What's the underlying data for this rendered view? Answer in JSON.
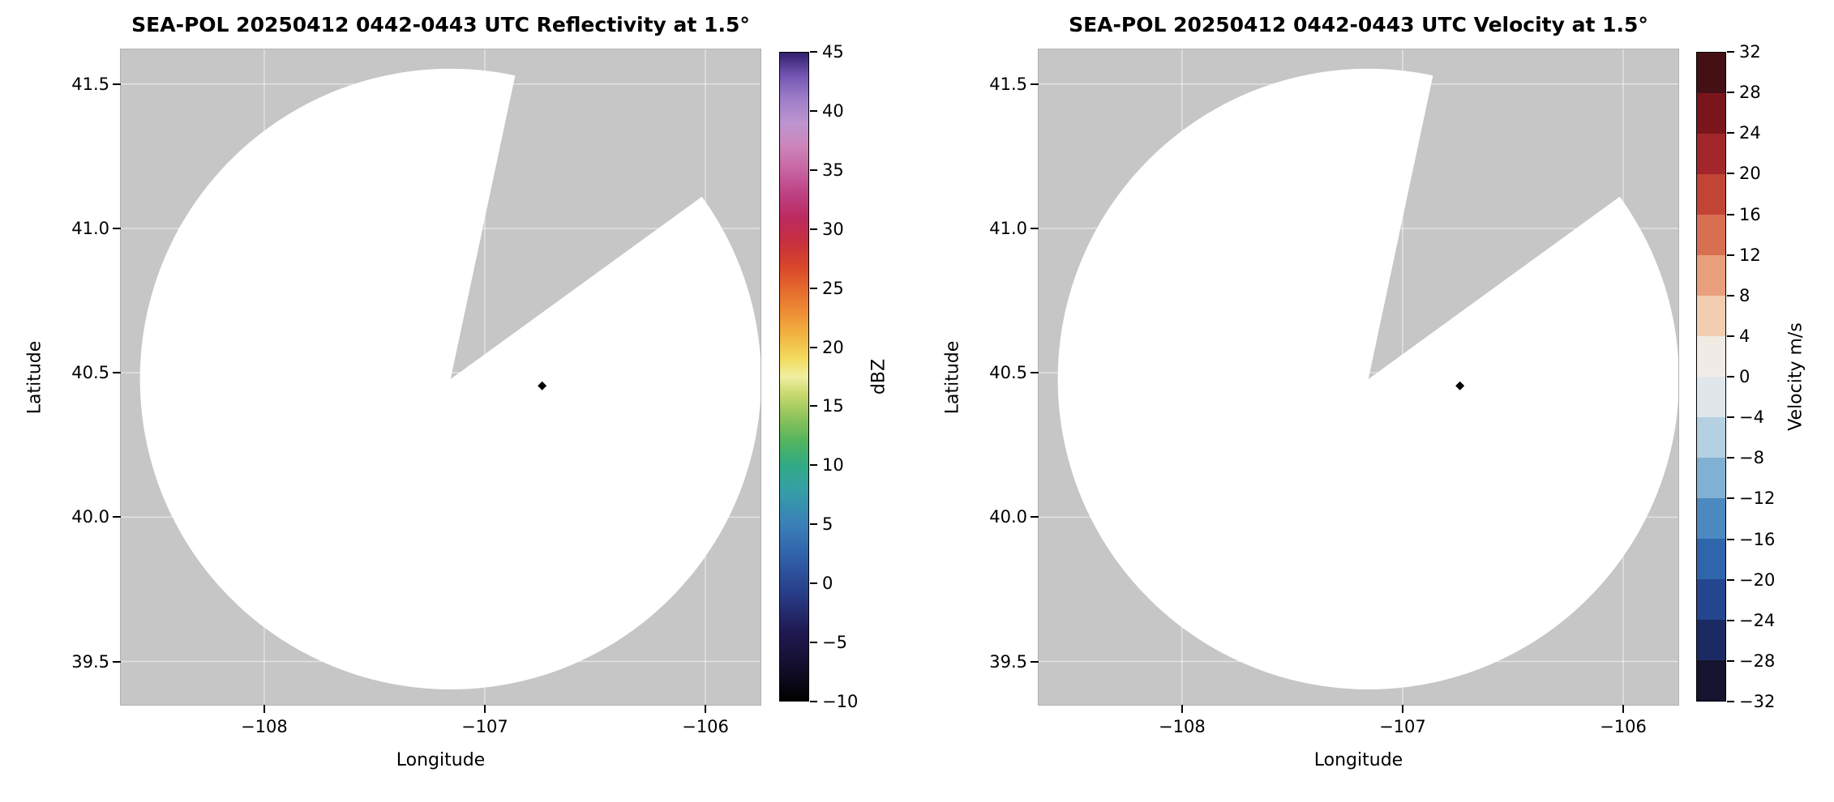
{
  "figure": {
    "background": "#ffffff",
    "instrument": "SEA-POL",
    "date": "20250412",
    "time_utc": "0442-0443",
    "elevation": "1.5°"
  },
  "chart_data": [
    {
      "type": "heatmap",
      "subtype": "radar_ppi",
      "title": "SEA-POL 20250412 0442-0443 UTC Reflectivity at 1.5°",
      "xlabel": "Longitude",
      "ylabel": "Latitude",
      "xlim": [
        -108.65,
        -105.75
      ],
      "ylim": [
        39.35,
        41.62
      ],
      "grid": true,
      "x_ticks": [
        {
          "v": -108,
          "label": "−108"
        },
        {
          "v": -107,
          "label": "−107"
        },
        {
          "v": -106,
          "label": "−106"
        }
      ],
      "y_ticks": [
        {
          "v": 41.5,
          "label": "41.5"
        },
        {
          "v": 41.0,
          "label": "41.0"
        },
        {
          "v": 40.5,
          "label": "40.5"
        },
        {
          "v": 40.0,
          "label": "40.0"
        },
        {
          "v": 39.5,
          "label": "39.5"
        }
      ],
      "background_masked_color": "#c6c6c6",
      "scan_area_color": "#ffffff",
      "radar_center": {
        "lon": -107.155,
        "lat": 40.478
      },
      "scan_radius_deg_lat": 1.075,
      "blanked_sector_azimuth_deg": [
        12,
        54
      ],
      "site_marker": {
        "lon": -106.74,
        "lat": 40.455,
        "shape": "diamond",
        "color": "#000000"
      },
      "field_note": "no echoes above threshold inside scan circle (all white)",
      "colorbar": {
        "label": "dBZ",
        "min": -10,
        "max": 45,
        "type": "gradient",
        "ticks": [
          {
            "v": -10,
            "label": "−10"
          },
          {
            "v": -5,
            "label": "−5"
          },
          {
            "v": 0,
            "label": "0"
          },
          {
            "v": 5,
            "label": "5"
          },
          {
            "v": 10,
            "label": "10"
          },
          {
            "v": 15,
            "label": "15"
          },
          {
            "v": 20,
            "label": "20"
          },
          {
            "v": 25,
            "label": "25"
          },
          {
            "v": 30,
            "label": "30"
          },
          {
            "v": 35,
            "label": "35"
          },
          {
            "v": 40,
            "label": "40"
          },
          {
            "v": 45,
            "label": "45"
          }
        ],
        "stops": [
          {
            "v": -10,
            "c": "#000000"
          },
          {
            "v": -7,
            "c": "#140f2e"
          },
          {
            "v": -4,
            "c": "#201a55"
          },
          {
            "v": -1,
            "c": "#283c86"
          },
          {
            "v": 2,
            "c": "#2f5ea7"
          },
          {
            "v": 5,
            "c": "#3a80b8"
          },
          {
            "v": 8,
            "c": "#35a0a4"
          },
          {
            "v": 10,
            "c": "#32aa85"
          },
          {
            "v": 12,
            "c": "#52b45e"
          },
          {
            "v": 14,
            "c": "#8cc35b"
          },
          {
            "v": 16,
            "c": "#c8d96e"
          },
          {
            "v": 17.5,
            "c": "#f0efa2"
          },
          {
            "v": 19,
            "c": "#f3dc5f"
          },
          {
            "v": 21,
            "c": "#f2b441"
          },
          {
            "v": 23,
            "c": "#ee8d34"
          },
          {
            "v": 25,
            "c": "#e4682c"
          },
          {
            "v": 27,
            "c": "#d7442b"
          },
          {
            "v": 29,
            "c": "#c62f40"
          },
          {
            "v": 31,
            "c": "#bc2a60"
          },
          {
            "v": 33,
            "c": "#bd4183"
          },
          {
            "v": 35,
            "c": "#c763a1"
          },
          {
            "v": 37,
            "c": "#cc84ba"
          },
          {
            "v": 39,
            "c": "#bd95cf"
          },
          {
            "v": 41,
            "c": "#9f7fca"
          },
          {
            "v": 43,
            "c": "#7457b4"
          },
          {
            "v": 45,
            "c": "#32206e"
          }
        ]
      }
    },
    {
      "type": "heatmap",
      "subtype": "radar_ppi",
      "title": "SEA-POL 20250412 0442-0443 UTC Velocity at 1.5°",
      "xlabel": "Longitude",
      "ylabel": "Latitude",
      "xlim": [
        -108.65,
        -105.75
      ],
      "ylim": [
        39.35,
        41.62
      ],
      "grid": true,
      "x_ticks": [
        {
          "v": -108,
          "label": "−108"
        },
        {
          "v": -107,
          "label": "−107"
        },
        {
          "v": -106,
          "label": "−106"
        }
      ],
      "y_ticks": [
        {
          "v": 41.5,
          "label": "41.5"
        },
        {
          "v": 41.0,
          "label": "41.0"
        },
        {
          "v": 40.5,
          "label": "40.5"
        },
        {
          "v": 40.0,
          "label": "40.0"
        },
        {
          "v": 39.5,
          "label": "39.5"
        }
      ],
      "background_masked_color": "#c6c6c6",
      "scan_area_color": "#ffffff",
      "radar_center": {
        "lon": -107.155,
        "lat": 40.478
      },
      "scan_radius_deg_lat": 1.075,
      "blanked_sector_azimuth_deg": [
        12,
        54
      ],
      "site_marker": {
        "lon": -106.74,
        "lat": 40.455,
        "shape": "diamond",
        "color": "#000000"
      },
      "field_note": "no velocity echoes inside scan circle (all white)",
      "colorbar": {
        "label": "Velocity m/s",
        "min": -32,
        "max": 32,
        "type": "segments",
        "ticks": [
          {
            "v": -32,
            "label": "−32"
          },
          {
            "v": -28,
            "label": "−28"
          },
          {
            "v": -24,
            "label": "−24"
          },
          {
            "v": -20,
            "label": "−20"
          },
          {
            "v": -16,
            "label": "−16"
          },
          {
            "v": -12,
            "label": "−12"
          },
          {
            "v": -8,
            "label": "−8"
          },
          {
            "v": -4,
            "label": "−4"
          },
          {
            "v": 0,
            "label": "0"
          },
          {
            "v": 4,
            "label": "4"
          },
          {
            "v": 8,
            "label": "8"
          },
          {
            "v": 12,
            "label": "12"
          },
          {
            "v": 16,
            "label": "16"
          },
          {
            "v": 20,
            "label": "20"
          },
          {
            "v": 24,
            "label": "24"
          },
          {
            "v": 28,
            "label": "28"
          },
          {
            "v": 32,
            "label": "32"
          }
        ],
        "segments": [
          {
            "from": -32,
            "to": -28,
            "c": "#14142f"
          },
          {
            "from": -28,
            "to": -24,
            "c": "#1c2a63"
          },
          {
            "from": -24,
            "to": -20,
            "c": "#24468e"
          },
          {
            "from": -20,
            "to": -16,
            "c": "#2f66ab"
          },
          {
            "from": -16,
            "to": -12,
            "c": "#4b89c0"
          },
          {
            "from": -12,
            "to": -8,
            "c": "#80b1d3"
          },
          {
            "from": -8,
            "to": -4,
            "c": "#b4d0e2"
          },
          {
            "from": -4,
            "to": 0,
            "c": "#dfe7ec"
          },
          {
            "from": 0,
            "to": 4,
            "c": "#f2ebe5"
          },
          {
            "from": 4,
            "to": 8,
            "c": "#f2cdb2"
          },
          {
            "from": 8,
            "to": 12,
            "c": "#ea9f7c"
          },
          {
            "from": 12,
            "to": 16,
            "c": "#d96f51"
          },
          {
            "from": 16,
            "to": 20,
            "c": "#c24435"
          },
          {
            "from": 20,
            "to": 24,
            "c": "#a2262a"
          },
          {
            "from": 24,
            "to": 28,
            "c": "#7b151c"
          },
          {
            "from": 28,
            "to": 32,
            "c": "#451015"
          }
        ]
      }
    }
  ]
}
